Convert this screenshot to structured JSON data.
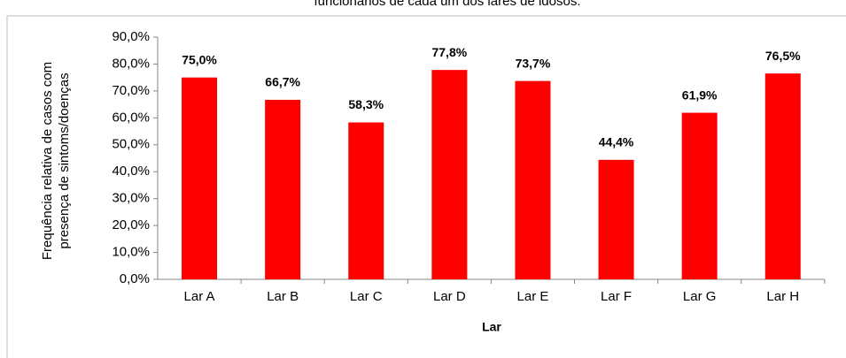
{
  "chart_data": {
    "type": "bar",
    "title": "funcionários de cada um dos lares de idosos.",
    "x_label": "Lar",
    "y_label": [
      "Frequência relativa de casos com",
      "presença de sintoms/doenças"
    ],
    "categories": [
      "Lar A",
      "Lar B",
      "Lar C",
      "Lar D",
      "Lar E",
      "Lar F",
      "Lar G",
      "Lar H"
    ],
    "values": [
      75.0,
      66.7,
      58.3,
      77.8,
      73.7,
      44.4,
      61.9,
      76.5
    ],
    "value_labels": [
      "75,0%",
      "66,7%",
      "58,3%",
      "77,8%",
      "73,7%",
      "44,4%",
      "61,9%",
      "76,5%"
    ],
    "color": "#ff0000",
    "ylim": [
      0,
      90
    ],
    "yticks": [
      {
        "value": 0,
        "label": "0,0%"
      },
      {
        "value": 10,
        "label": "10,0%"
      },
      {
        "value": 20,
        "label": "20,0%"
      },
      {
        "value": 30,
        "label": "30,0%"
      },
      {
        "value": 40,
        "label": "40,0%"
      },
      {
        "value": 50,
        "label": "50,0%"
      },
      {
        "value": 60,
        "label": "60,0%"
      },
      {
        "value": 70,
        "label": "70,0%"
      },
      {
        "value": 80,
        "label": "80,0%"
      },
      {
        "value": 90,
        "label": "90,0%"
      }
    ],
    "grid": false
  }
}
